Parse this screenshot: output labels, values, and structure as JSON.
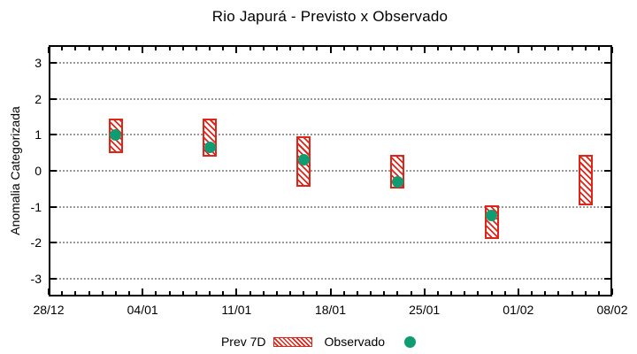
{
  "chart_data": {
    "type": "bar",
    "title": "Rio Japurá - Previsto x Observado",
    "xlabel": "",
    "ylabel": "Anomalia Categorizada",
    "ylim": [
      -3.5,
      3.5
    ],
    "yticks": [
      3,
      2,
      1,
      0,
      -1,
      -2,
      -3
    ],
    "x_axis": {
      "tick_labels": [
        "28/12",
        "04/01",
        "11/01",
        "18/01",
        "25/01",
        "01/02",
        "08/02"
      ],
      "tick_days": [
        0,
        7,
        14,
        21,
        28,
        35,
        42
      ],
      "range_days": 42,
      "minor_tick_every_days": 1
    },
    "grid": "horizontal-dotted",
    "legend_position": "bottom-center",
    "series": [
      {
        "name": "Prev 7D",
        "type": "range-bar",
        "swatch": "hatched-red-bar"
      },
      {
        "name": "Observado",
        "type": "scatter",
        "swatch": "green-dot"
      }
    ],
    "points": [
      {
        "date": "02/01",
        "day": 5,
        "prev_low": 0.5,
        "prev_high": 1.45,
        "observado": 1.0
      },
      {
        "date": "09/01",
        "day": 12,
        "prev_low": 0.4,
        "prev_high": 1.45,
        "observado": 0.65
      },
      {
        "date": "16/01",
        "day": 19,
        "prev_low": -0.45,
        "prev_high": 0.95,
        "observado": 0.3
      },
      {
        "date": "23/01",
        "day": 26,
        "prev_low": -0.5,
        "prev_high": 0.45,
        "observado": -0.3
      },
      {
        "date": "30/01",
        "day": 33,
        "prev_low": -1.9,
        "prev_high": -0.95,
        "observado": -1.25
      },
      {
        "date": "06/02",
        "day": 40,
        "prev_low": -0.95,
        "prev_high": 0.45,
        "observado": null
      }
    ]
  },
  "colors": {
    "forecast_red": "#e02417",
    "observed_green": "#0f9c72",
    "grid_gray": "#999999",
    "axis_black": "#000000",
    "background": "#ffffff"
  }
}
